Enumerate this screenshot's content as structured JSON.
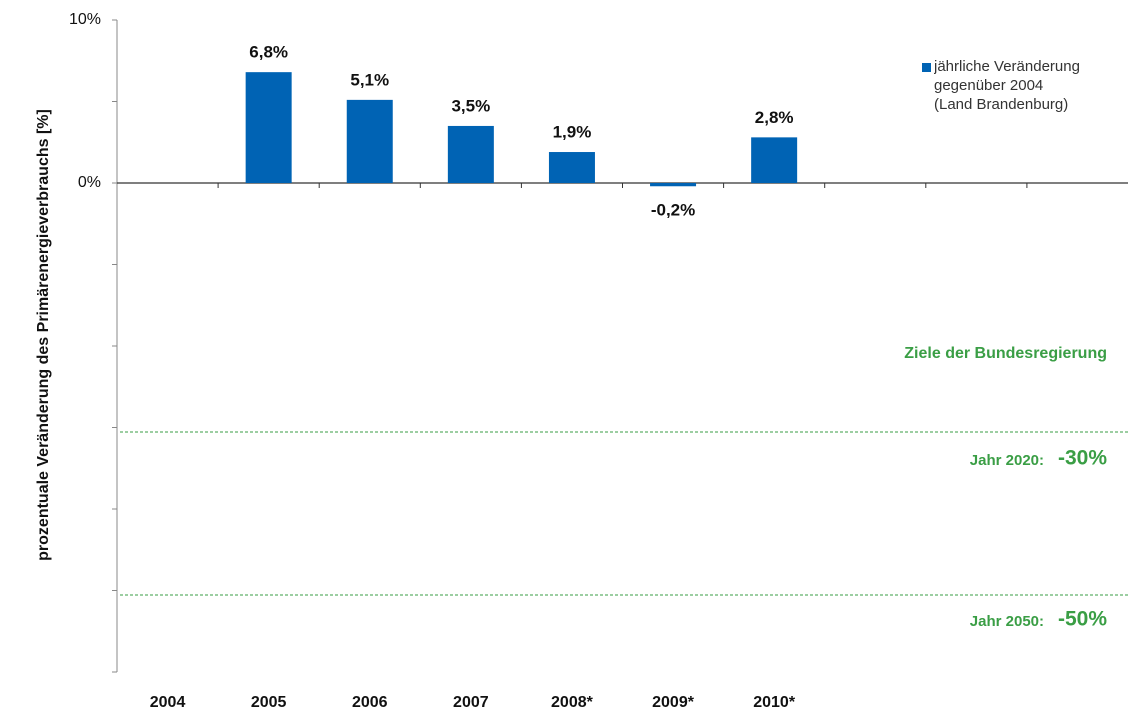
{
  "chart_data": {
    "type": "bar",
    "y_label": "prozentuale Veränderung des Primärenergieverbrauchs  [%]",
    "categories": [
      "2004",
      "2005",
      "2006",
      "2007",
      "2008*",
      "2009*",
      "2010*",
      null,
      null,
      null
    ],
    "series": [
      {
        "name": "jährliche Veränderung\ngegenüber 2004\n(Land Brandenburg)",
        "color": "#0063b4",
        "values": [
          null,
          6.8,
          5.1,
          3.5,
          1.9,
          -0.2,
          2.8,
          null,
          null,
          null
        ],
        "value_labels": [
          null,
          "6,8%",
          "5,1%",
          "3,5%",
          "1,9%",
          "-0,2%",
          "2,8%",
          null,
          null,
          null
        ]
      }
    ],
    "ylim": [
      -30,
      10
    ],
    "yticks": [
      {
        "value": 10,
        "label": "10%"
      },
      {
        "value": 0,
        "label": "0%"
      }
    ],
    "minor_yticks": [
      5,
      -5,
      -10,
      -15,
      -20,
      -25,
      -30
    ],
    "annotations": {
      "heading": "Ziele der Bundesregierung",
      "target1_label": "Jahr 2020:",
      "target1_value": "-30%",
      "target2_label": "Jahr 2050:",
      "target2_value": "-50%"
    }
  }
}
